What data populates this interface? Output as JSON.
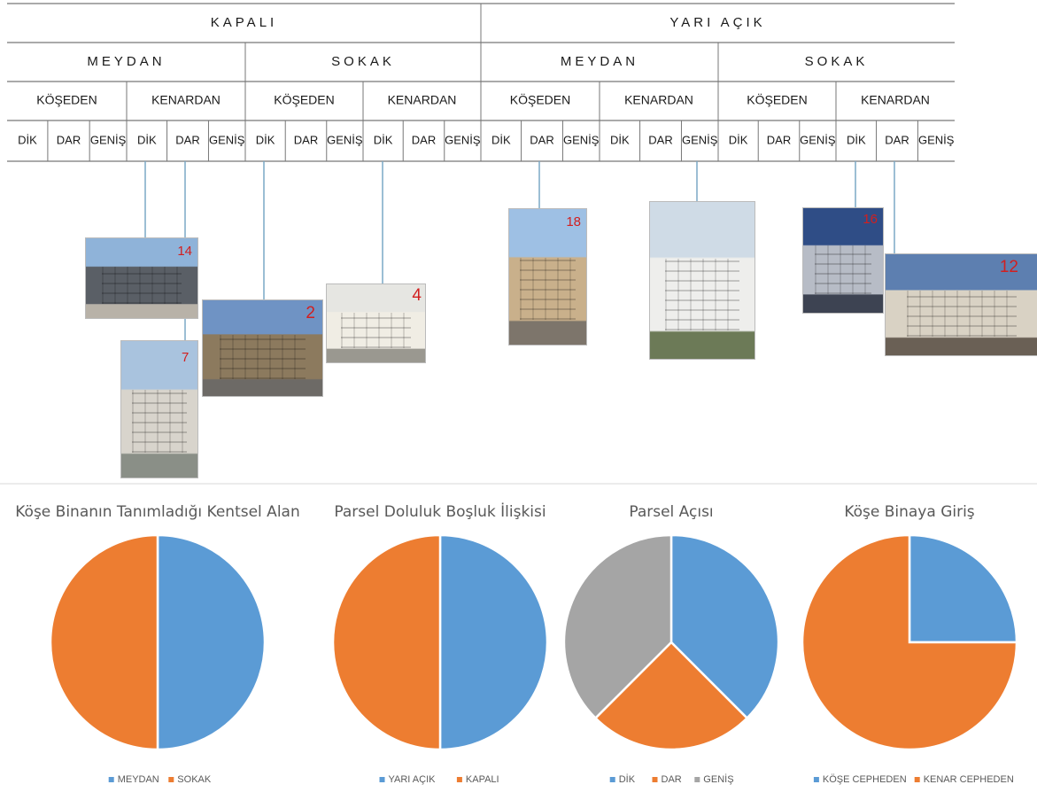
{
  "classification_table": {
    "level1": [
      "KAPALI",
      "YARI AÇIK"
    ],
    "level2": [
      "MEYDAN",
      "SOKAK",
      "MEYDAN",
      "SOKAK"
    ],
    "level3": [
      "KÖŞEDEN",
      "KENARDAN",
      "KÖŞEDEN",
      "KENARDAN",
      "KÖŞEDEN",
      "KENARDAN",
      "KÖŞEDEN",
      "KENARDAN"
    ],
    "level4": [
      "DİK",
      "DAR",
      "GENİŞ",
      "DİK",
      "DAR",
      "GENİŞ",
      "DİK",
      "DAR",
      "GENİŞ",
      "DİK",
      "DAR",
      "GENİŞ",
      "DİK",
      "DAR",
      "GENİŞ",
      "DİK",
      "DAR",
      "GENİŞ",
      "DİK",
      "DAR",
      "GENİŞ",
      "DİK",
      "DAR",
      "GENİŞ"
    ]
  },
  "photos": [
    {
      "number": "14",
      "colors": {
        "sky": "#8fb3d9",
        "building": "#5a5f66",
        "ground": "#b8b2a8"
      }
    },
    {
      "number": "7",
      "colors": {
        "sky": "#a9c3de",
        "building": "#d8d4cc",
        "ground": "#8a8f87"
      }
    },
    {
      "number": "2",
      "colors": {
        "sky": "#6f93c4",
        "building": "#8c7a5e",
        "ground": "#6d6a66"
      }
    },
    {
      "number": "4",
      "colors": {
        "sky": "#e6e6e2",
        "building": "#f0ede4",
        "ground": "#9a9890"
      }
    },
    {
      "number": "18",
      "colors": {
        "sky": "#9ec0e4",
        "building": "#c9b08b",
        "ground": "#7d756b"
      }
    },
    {
      "number": "",
      "colors": {
        "sky": "#cfdbe6",
        "building": "#eeeeec",
        "ground": "#6c7a57"
      }
    },
    {
      "number": "16",
      "colors": {
        "sky": "#2f4d86",
        "building": "#b7bcc6",
        "ground": "#3d4352"
      }
    },
    {
      "number": "12",
      "colors": {
        "sky": "#5d7fb0",
        "building": "#d9d2c4",
        "ground": "#6a6055"
      }
    }
  ],
  "chart_data": [
    {
      "type": "pie",
      "title": "Köşe Binanın Tanımladığı Kentsel Alan",
      "labels": [
        "MEYDAN",
        "SOKAK"
      ],
      "values": [
        50,
        50
      ],
      "colors": [
        "#5b9bd5",
        "#ed7d31"
      ],
      "legend": "bottom"
    },
    {
      "type": "pie",
      "title": "Parsel Doluluk Boşluk İlişkisi",
      "labels": [
        "YARI AÇIK",
        "KAPALI"
      ],
      "values": [
        50,
        50
      ],
      "colors": [
        "#5b9bd5",
        "#ed7d31"
      ],
      "legend": "bottom"
    },
    {
      "type": "pie",
      "title": "Parsel Açısı",
      "labels": [
        "DİK",
        "DAR",
        "GENİŞ"
      ],
      "values": [
        37.5,
        25,
        37.5
      ],
      "colors": [
        "#5b9bd5",
        "#ed7d31",
        "#a5a5a5"
      ],
      "legend": "bottom"
    },
    {
      "type": "pie",
      "title": "Köşe Binaya Giriş",
      "labels": [
        "KÖŞE CEPHEDEN",
        "KENAR CEPHEDEN"
      ],
      "values": [
        25,
        75
      ],
      "colors": [
        "#5b9bd5",
        "#ed7d31"
      ],
      "legend": "bottom"
    }
  ]
}
